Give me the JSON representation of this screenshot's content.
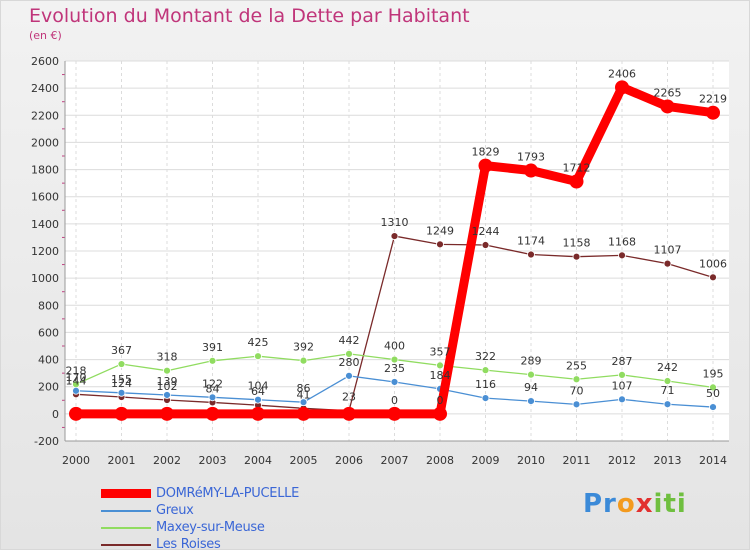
{
  "header": {
    "title": "Evolution du Montant de la Dette par Habitant",
    "unit": "(en €)"
  },
  "logo": {
    "text": "Proxiti"
  },
  "chart_data": {
    "type": "line",
    "title": "Evolution du Montant de la Dette par Habitant",
    "subtitle": "(en €)",
    "xlabel": "",
    "ylabel": "",
    "x": [
      "2000",
      "2001",
      "2002",
      "2003",
      "2004",
      "2005",
      "2006",
      "2007",
      "2008",
      "2009",
      "2010",
      "2011",
      "2012",
      "2013",
      "2014"
    ],
    "ylim": [
      -200,
      2600
    ],
    "yticks": [
      -200,
      0,
      200,
      400,
      600,
      800,
      1000,
      1200,
      1400,
      1600,
      1800,
      2000,
      2200,
      2400,
      2600
    ],
    "grid": true,
    "legend_position": "bottom-left",
    "series": [
      {
        "name": "DOMRéMY-LA-PUCELLE",
        "color": "#ff0000",
        "values": [
          0,
          0,
          0,
          0,
          0,
          0,
          0,
          0,
          0,
          1829,
          1793,
          1712,
          2406,
          2265,
          2219
        ],
        "labels": [
          "",
          "",
          "",
          "",
          "",
          "",
          "",
          "0",
          "0",
          "1829",
          "1793",
          "1712",
          "2406",
          "2265",
          "2219"
        ]
      },
      {
        "name": "Greux",
        "color": "#4a8fd4",
        "values": [
          170,
          155,
          139,
          122,
          104,
          86,
          280,
          235,
          184,
          116,
          94,
          70,
          107,
          71,
          50
        ],
        "labels": [
          "170",
          "155",
          "139",
          "122",
          "104",
          "86",
          "280",
          "235",
          "184",
          "116",
          "94",
          "70",
          "107",
          "71",
          "50"
        ]
      },
      {
        "name": "Maxey-sur-Meuse",
        "color": "#90dc60",
        "values": [
          218,
          367,
          318,
          391,
          425,
          392,
          442,
          400,
          357,
          322,
          289,
          255,
          287,
          242,
          195
        ],
        "labels": [
          "218",
          "367",
          "318",
          "391",
          "425",
          "392",
          "442",
          "400",
          "357",
          "322",
          "289",
          "255",
          "287",
          "242",
          "195"
        ]
      },
      {
        "name": "Les Roises",
        "color": "#7a2a2a",
        "values": [
          144,
          124,
          102,
          84,
          64,
          41,
          23,
          1310,
          1249,
          1244,
          1174,
          1158,
          1168,
          1107,
          1006
        ],
        "labels": [
          "144",
          "124",
          "102",
          "84",
          "64",
          "41",
          "23",
          "1310",
          "1249",
          "1244",
          "1174",
          "1158",
          "1168",
          "1107",
          "1006"
        ]
      }
    ]
  }
}
